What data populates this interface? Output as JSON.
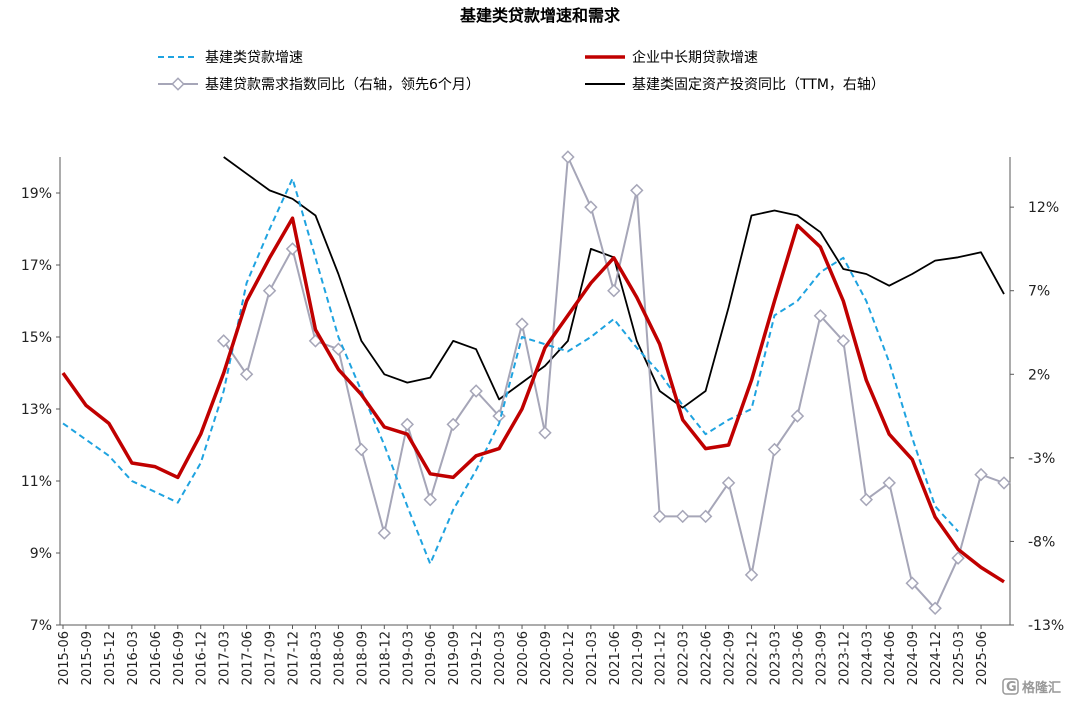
{
  "chart_data": {
    "type": "line",
    "title": "基建类贷款增速和需求",
    "x_labels": [
      "2015-06",
      "2015-09",
      "2015-12",
      "2016-03",
      "2016-06",
      "2016-09",
      "2016-12",
      "2017-03",
      "2017-06",
      "2017-09",
      "2017-12",
      "2018-03",
      "2018-06",
      "2018-09",
      "2018-12",
      "2019-03",
      "2019-06",
      "2019-09",
      "2019-12",
      "2020-03",
      "2020-06",
      "2020-09",
      "2020-12",
      "2021-03",
      "2021-06",
      "2021-09",
      "2021-12",
      "2022-03",
      "2022-06",
      "2022-09",
      "2022-12",
      "2023-03",
      "2023-06",
      "2023-09",
      "2023-12",
      "2024-03",
      "2024-06",
      "2024-09",
      "2024-12",
      "2025-03",
      "2025-06"
    ],
    "y_left": {
      "ticks": [
        "19%",
        "17%",
        "15%",
        "13%",
        "11%",
        "9%",
        "7%"
      ],
      "min": 7,
      "max": 20
    },
    "y_right": {
      "ticks": [
        "12%",
        "7%",
        "2%",
        "-3%",
        "-8%",
        "-13%"
      ],
      "min": -13,
      "max": 15
    },
    "series": [
      {
        "name": "基建类贷款增速",
        "axis": "left",
        "color": "#1fa3e0",
        "style": "dashed",
        "points": [
          [
            "2015-06",
            12.6
          ],
          [
            "2015-12",
            11.7
          ],
          [
            "2016-03",
            11.0
          ],
          [
            "2016-09",
            10.4
          ],
          [
            "2016-12",
            11.5
          ],
          [
            "2017-03",
            13.5
          ],
          [
            "2017-06",
            16.5
          ],
          [
            "2017-09",
            18.0
          ],
          [
            "2017-12",
            19.4
          ],
          [
            "2018-06",
            15.0
          ],
          [
            "2018-09",
            13.5
          ],
          [
            "2018-12",
            12.0
          ],
          [
            "2019-03",
            10.3
          ],
          [
            "2019-06",
            8.7
          ],
          [
            "2019-09",
            10.2
          ],
          [
            "2019-12",
            11.3
          ],
          [
            "2020-03",
            12.6
          ],
          [
            "2020-06",
            15.0
          ],
          [
            "2020-09",
            14.8
          ],
          [
            "2020-12",
            14.6
          ],
          [
            "2021-03",
            15.0
          ],
          [
            "2021-06",
            15.5
          ],
          [
            "2021-09",
            14.7
          ],
          [
            "2021-12",
            14.0
          ],
          [
            "2022-03",
            13.1
          ],
          [
            "2022-06",
            12.3
          ],
          [
            "2022-09",
            12.7
          ],
          [
            "2022-12",
            13.0
          ],
          [
            "2023-03",
            15.6
          ],
          [
            "2023-06",
            16.0
          ],
          [
            "2023-09",
            16.8
          ],
          [
            "2023-12",
            17.2
          ],
          [
            "2024-03",
            16.0
          ],
          [
            "2024-06",
            14.3
          ],
          [
            "2024-09",
            12.2
          ],
          [
            "2024-12",
            10.3
          ],
          [
            "2025-03",
            9.6
          ]
        ]
      },
      {
        "name": "企业中长期贷款增速",
        "axis": "left",
        "color": "#c00000",
        "style": "solid",
        "points": [
          [
            "2015-06",
            14.0
          ],
          [
            "2015-09",
            13.1
          ],
          [
            "2015-12",
            12.6
          ],
          [
            "2016-03",
            11.5
          ],
          [
            "2016-06",
            11.4
          ],
          [
            "2016-09",
            11.1
          ],
          [
            "2016-12",
            12.3
          ],
          [
            "2017-03",
            14.0
          ],
          [
            "2017-06",
            16.0
          ],
          [
            "2017-09",
            17.2
          ],
          [
            "2017-12",
            18.3
          ],
          [
            "2018-03",
            15.2
          ],
          [
            "2018-06",
            14.1
          ],
          [
            "2018-09",
            13.4
          ],
          [
            "2018-12",
            12.5
          ],
          [
            "2019-03",
            12.3
          ],
          [
            "2019-06",
            11.2
          ],
          [
            "2019-09",
            11.1
          ],
          [
            "2019-12",
            11.7
          ],
          [
            "2020-03",
            11.9
          ],
          [
            "2020-06",
            13.0
          ],
          [
            "2020-09",
            14.7
          ],
          [
            "2020-12",
            15.6
          ],
          [
            "2021-03",
            16.5
          ],
          [
            "2021-06",
            17.2
          ],
          [
            "2021-09",
            16.1
          ],
          [
            "2021-12",
            14.8
          ],
          [
            "2022-03",
            12.7
          ],
          [
            "2022-06",
            11.9
          ],
          [
            "2022-09",
            12.0
          ],
          [
            "2022-12",
            13.8
          ],
          [
            "2023-03",
            16.0
          ],
          [
            "2023-06",
            18.1
          ],
          [
            "2023-09",
            17.5
          ],
          [
            "2023-12",
            16.0
          ],
          [
            "2024-03",
            13.8
          ],
          [
            "2024-06",
            12.3
          ],
          [
            "2024-09",
            11.6
          ],
          [
            "2024-12",
            10.0
          ],
          [
            "2025-03",
            9.1
          ],
          [
            "2025-06",
            8.6
          ],
          [
            "2025-09",
            8.2
          ]
        ]
      },
      {
        "name": "基建贷款需求指数同比（右轴，领先6个月）",
        "axis": "right",
        "color": "#a6a6b8",
        "style": "solid-diamond",
        "points": [
          [
            "2017-03",
            4.0
          ],
          [
            "2017-06",
            2.0
          ],
          [
            "2017-09",
            7.0
          ],
          [
            "2017-12",
            9.5
          ],
          [
            "2018-03",
            4.0
          ],
          [
            "2018-06",
            3.5
          ],
          [
            "2018-09",
            -2.5
          ],
          [
            "2018-12",
            -7.5
          ],
          [
            "2019-03",
            -1.0
          ],
          [
            "2019-06",
            -5.5
          ],
          [
            "2019-09",
            -1.0
          ],
          [
            "2019-12",
            1.0
          ],
          [
            "2020-03",
            -0.5
          ],
          [
            "2020-06",
            5.0
          ],
          [
            "2020-09",
            -1.5
          ],
          [
            "2020-12",
            15.0
          ],
          [
            "2021-03",
            12.0
          ],
          [
            "2021-06",
            7.0
          ],
          [
            "2021-09",
            13.0
          ],
          [
            "2021-12",
            -6.5
          ],
          [
            "2022-03",
            -6.5
          ],
          [
            "2022-06",
            -6.5
          ],
          [
            "2022-09",
            -4.5
          ],
          [
            "2022-12",
            -10.0
          ],
          [
            "2023-03",
            -2.5
          ],
          [
            "2023-06",
            -0.5
          ],
          [
            "2023-09",
            5.5
          ],
          [
            "2023-12",
            4.0
          ],
          [
            "2024-03",
            -5.5
          ],
          [
            "2024-06",
            -4.5
          ],
          [
            "2024-09",
            -10.5
          ],
          [
            "2024-12",
            -12.0
          ],
          [
            "2025-03",
            -9.0
          ],
          [
            "2025-06",
            -4.0
          ],
          [
            "2025-09",
            -4.5
          ]
        ]
      },
      {
        "name": "基建类固定资产投资同比（TTM，右轴）",
        "axis": "right",
        "color": "#000000",
        "style": "solid",
        "points": [
          [
            "2017-03",
            15.0
          ],
          [
            "2017-06",
            14.0
          ],
          [
            "2017-09",
            13.0
          ],
          [
            "2017-12",
            12.5
          ],
          [
            "2018-03",
            11.5
          ],
          [
            "2018-06",
            8.0
          ],
          [
            "2018-09",
            4.0
          ],
          [
            "2018-12",
            2.0
          ],
          [
            "2019-03",
            1.5
          ],
          [
            "2019-06",
            1.8
          ],
          [
            "2019-09",
            4.0
          ],
          [
            "2019-12",
            3.5
          ],
          [
            "2020-03",
            0.5
          ],
          [
            "2020-06",
            1.5
          ],
          [
            "2020-09",
            2.5
          ],
          [
            "2020-12",
            4.0
          ],
          [
            "2021-03",
            9.5
          ],
          [
            "2021-06",
            9.0
          ],
          [
            "2021-09",
            4.0
          ],
          [
            "2021-12",
            1.0
          ],
          [
            "2022-03",
            0.0
          ],
          [
            "2022-06",
            1.0
          ],
          [
            "2022-09",
            6.0
          ],
          [
            "2022-12",
            11.5
          ],
          [
            "2023-03",
            11.8
          ],
          [
            "2023-06",
            11.5
          ],
          [
            "2023-09",
            10.5
          ],
          [
            "2023-12",
            8.3
          ],
          [
            "2024-03",
            8.0
          ],
          [
            "2024-06",
            7.3
          ],
          [
            "2024-09",
            8.0
          ],
          [
            "2024-12",
            8.8
          ],
          [
            "2025-03",
            9.0
          ],
          [
            "2025-06",
            9.3
          ],
          [
            "2025-09",
            6.8
          ]
        ]
      }
    ],
    "watermark": "格隆汇"
  }
}
